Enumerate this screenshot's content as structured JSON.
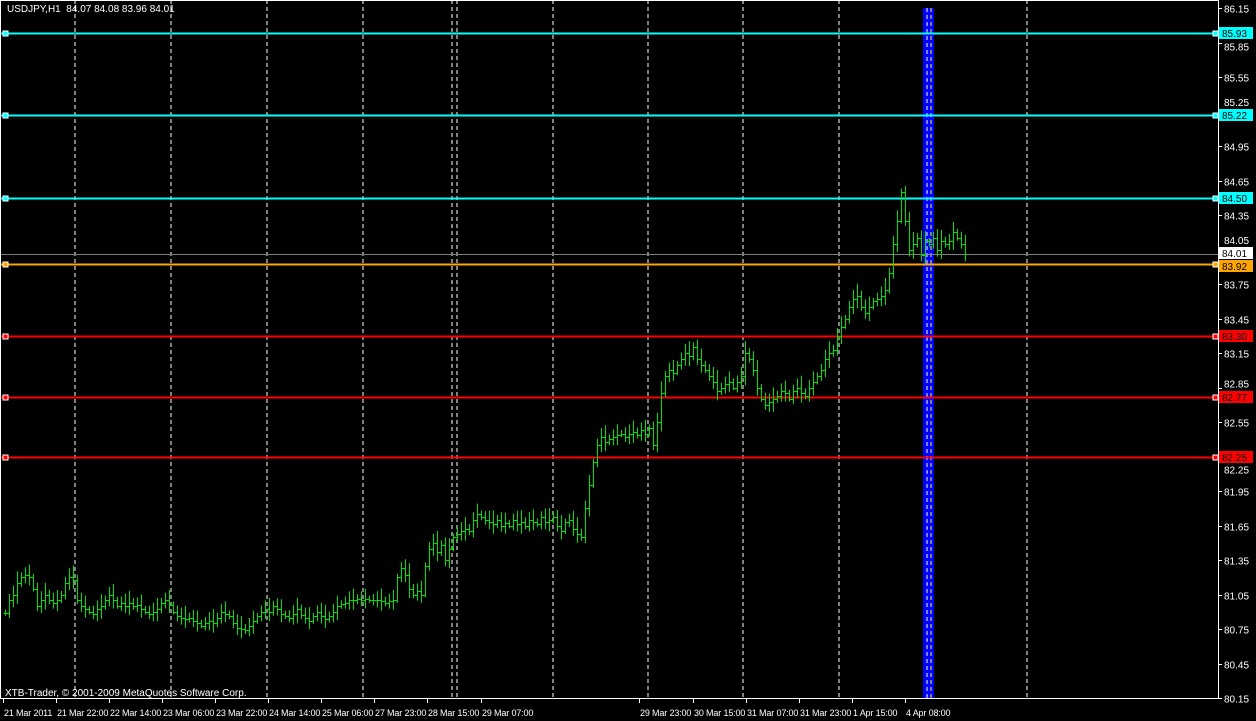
{
  "header": {
    "symbol": "USDJPY,H1",
    "ohlc": "84.07 84.08 83.96 84.01"
  },
  "copyright": "XTB-Trader, © 2001-2009 MetaQuotes Software Corp.",
  "colors": {
    "background": "#000000",
    "bars": "#00e000",
    "grid": "#ffffff",
    "axis": "#ffffff",
    "resistance": "#00ffff",
    "pivot": "#ffa500",
    "support": "#ff0000",
    "bid_line": "#808080",
    "highlight_band": "#0000ff"
  },
  "chart_data": {
    "type": "ohlc-bar",
    "timeframe": "H1",
    "ylim": [
      80.15,
      86.15
    ],
    "y_ticks": [
      "86.15",
      "85.85",
      "85.55",
      "85.25",
      "84.95",
      "84.65",
      "84.35",
      "84.05",
      "83.75",
      "83.45",
      "83.15",
      "82.85",
      "82.55",
      "82.25",
      "81.95",
      "81.65",
      "81.35",
      "81.05",
      "80.75",
      "80.45",
      "80.15"
    ],
    "x_ticks": [
      "21 Mar 2011",
      "21 Mar 22:00",
      "22 Mar 14:00",
      "23 Mar 06:00",
      "23 Mar 22:00",
      "24 Mar 14:00",
      "25 Mar 06:00",
      "27 Mar 23:00",
      "28 Mar 15:00",
      "29 Mar 07:00",
      "29 Mar 23:00",
      "30 Mar 15:00",
      "31 Mar 07:00",
      "31 Mar 23:00",
      "1 Apr 15:00",
      "4 Apr 08:00"
    ],
    "grid": true,
    "close": [
      80.89,
      81.0,
      81.05,
      81.15,
      81.2,
      81.22,
      81.2,
      81.1,
      80.95,
      81.0,
      81.05,
      81.0,
      80.98,
      81.0,
      81.05,
      81.15,
      81.2,
      81.18,
      81.0,
      80.95,
      80.92,
      80.9,
      80.88,
      80.92,
      80.95,
      81.0,
      81.05,
      81.0,
      80.95,
      80.98,
      80.95,
      80.98,
      80.95,
      80.96,
      80.92,
      80.9,
      80.88,
      80.9,
      80.92,
      80.98,
      81.0,
      80.96,
      80.9,
      80.86,
      80.85,
      80.84,
      80.85,
      80.82,
      80.8,
      80.78,
      80.8,
      80.82,
      80.8,
      80.85,
      80.9,
      80.88,
      80.86,
      80.8,
      80.76,
      80.75,
      80.74,
      80.78,
      80.82,
      80.86,
      80.9,
      80.92,
      80.9,
      80.95,
      80.92,
      80.88,
      80.86,
      80.85,
      80.88,
      80.92,
      80.87,
      80.85,
      80.82,
      80.86,
      80.9,
      80.86,
      80.84,
      80.86,
      80.9,
      80.95,
      80.97,
      80.98,
      81.0,
      81.0,
      81.01,
      81.0,
      81.01,
      81.0,
      81.0,
      81.0,
      80.99,
      80.98,
      80.99,
      81.0,
      81.2,
      81.28,
      81.22,
      81.1,
      81.05,
      81.08,
      81.05,
      81.3,
      81.45,
      81.5,
      81.42,
      81.48,
      81.35,
      81.45,
      81.55,
      81.58,
      81.6,
      81.62,
      81.6,
      81.7,
      81.75,
      81.72,
      81.7,
      81.68,
      81.66,
      81.7,
      81.65,
      81.67,
      81.65,
      81.7,
      81.66,
      81.68,
      81.65,
      81.7,
      81.68,
      81.66,
      81.72,
      81.68,
      81.7,
      81.72,
      81.65,
      81.6,
      81.68,
      81.7,
      81.62,
      81.58,
      81.55,
      81.8,
      82.0,
      82.2,
      82.35,
      82.42,
      82.38,
      82.4,
      82.42,
      82.44,
      82.45,
      82.42,
      82.45,
      82.46,
      82.44,
      82.48,
      82.45,
      82.5,
      82.35,
      82.55,
      82.8,
      82.95,
      83.0,
      82.98,
      83.05,
      83.1,
      83.15,
      83.12,
      83.2,
      83.1,
      83.05,
      83.0,
      82.95,
      82.9,
      82.82,
      82.85,
      82.88,
      82.9,
      82.85,
      82.9,
      82.95,
      83.15,
      83.1,
      83.0,
      82.85,
      82.75,
      82.7,
      82.72,
      82.75,
      82.78,
      82.82,
      82.8,
      82.75,
      82.82,
      82.85,
      82.8,
      82.78,
      82.85,
      82.9,
      82.95,
      83.0,
      83.1,
      83.15,
      83.18,
      83.3,
      83.38,
      83.45,
      83.55,
      83.62,
      83.65,
      83.55,
      83.5,
      83.55,
      83.6,
      83.62,
      83.65,
      83.7,
      83.85,
      84.1,
      84.3,
      84.55,
      84.3,
      84.05,
      84.1,
      84.15,
      84.0,
      84.12,
      84.1,
      84.15,
      84.05,
      84.12,
      84.1,
      84.12,
      84.2,
      84.15,
      84.1,
      84.01
    ],
    "levels": [
      {
        "price": 85.93,
        "label": "85.93",
        "kind": "resistance"
      },
      {
        "price": 85.22,
        "label": "85.22",
        "kind": "resistance"
      },
      {
        "price": 84.5,
        "label": "84.50",
        "kind": "resistance"
      },
      {
        "price": 83.92,
        "label": "83.92",
        "kind": "pivot"
      },
      {
        "price": 83.3,
        "label": "83.30",
        "kind": "support"
      },
      {
        "price": 82.77,
        "label": "82.77",
        "kind": "support"
      },
      {
        "price": 82.25,
        "label": "82.25",
        "kind": "support"
      }
    ],
    "bid": {
      "price": 84.01,
      "label": "84.01"
    }
  }
}
